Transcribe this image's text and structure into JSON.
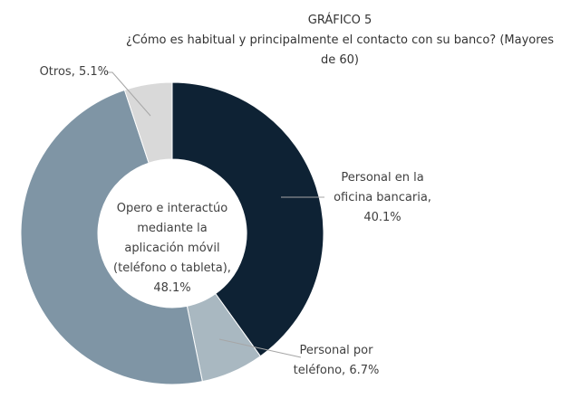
{
  "chart_data": {
    "type": "donut",
    "title": "GRÁFICO 5",
    "subtitle": "¿Cómo es habitual y principalmente el contacto con su banco? (Mayores de 60)",
    "values": [
      40.1,
      6.7,
      48.1,
      5.1
    ],
    "value_labels": [
      "Personal en la oficina bancaria, 40.1%",
      "Personal por teléfono, 6.7%",
      "Opero e interactúo mediante la aplicación móvil (teléfono o tableta), 48.1%",
      "Otros, 5.1%"
    ],
    "colors": [
      "#0e2234",
      "#a9b8c1",
      "#7f95a5",
      "#d9d9d9"
    ]
  }
}
